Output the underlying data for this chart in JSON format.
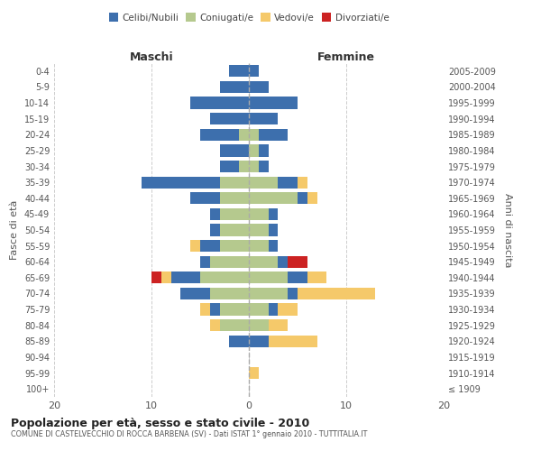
{
  "age_groups": [
    "0-4",
    "5-9",
    "10-14",
    "15-19",
    "20-24",
    "25-29",
    "30-34",
    "35-39",
    "40-44",
    "45-49",
    "50-54",
    "55-59",
    "60-64",
    "65-69",
    "70-74",
    "75-79",
    "80-84",
    "85-89",
    "90-94",
    "95-99",
    "100+"
  ],
  "birth_years": [
    "2005-2009",
    "2000-2004",
    "1995-1999",
    "1990-1994",
    "1985-1989",
    "1980-1984",
    "1975-1979",
    "1970-1974",
    "1965-1969",
    "1960-1964",
    "1955-1959",
    "1950-1954",
    "1945-1949",
    "1940-1944",
    "1935-1939",
    "1930-1934",
    "1925-1929",
    "1920-1924",
    "1915-1919",
    "1910-1914",
    "≤ 1909"
  ],
  "maschi": {
    "celibi": [
      2,
      3,
      6,
      4,
      4,
      3,
      2,
      8,
      3,
      1,
      1,
      2,
      1,
      3,
      3,
      1,
      0,
      2,
      0,
      0,
      0
    ],
    "coniugati": [
      0,
      0,
      0,
      0,
      1,
      0,
      1,
      3,
      3,
      3,
      3,
      3,
      4,
      5,
      4,
      3,
      3,
      0,
      0,
      0,
      0
    ],
    "vedovi": [
      0,
      0,
      0,
      0,
      0,
      0,
      0,
      0,
      0,
      0,
      0,
      1,
      0,
      1,
      0,
      1,
      1,
      0,
      0,
      0,
      0
    ],
    "divorziati": [
      0,
      0,
      0,
      0,
      0,
      0,
      0,
      0,
      0,
      0,
      0,
      0,
      0,
      1,
      0,
      0,
      0,
      0,
      0,
      0,
      0
    ]
  },
  "femmine": {
    "nubili": [
      1,
      2,
      5,
      3,
      3,
      1,
      1,
      2,
      1,
      1,
      1,
      1,
      1,
      2,
      1,
      1,
      0,
      2,
      0,
      0,
      0
    ],
    "coniugate": [
      0,
      0,
      0,
      0,
      1,
      1,
      1,
      3,
      5,
      2,
      2,
      2,
      3,
      4,
      4,
      2,
      2,
      0,
      0,
      0,
      0
    ],
    "vedove": [
      0,
      0,
      0,
      0,
      0,
      0,
      0,
      1,
      1,
      0,
      0,
      0,
      0,
      2,
      8,
      2,
      2,
      5,
      0,
      1,
      0
    ],
    "divorziate": [
      0,
      0,
      0,
      0,
      0,
      0,
      0,
      0,
      0,
      0,
      0,
      0,
      2,
      0,
      0,
      0,
      0,
      0,
      0,
      0,
      0
    ]
  },
  "color_celibi": "#3d6fad",
  "color_coniugati": "#b5c98e",
  "color_vedovi": "#f5c96a",
  "color_divorziati": "#cc2222",
  "title": "Popolazione per età, sesso e stato civile - 2010",
  "subtitle": "COMUNE DI CASTELVECCHIO DI ROCCA BARBENA (SV) - Dati ISTAT 1° gennaio 2010 - TUTTITALIA.IT",
  "xlabel_left": "Maschi",
  "xlabel_right": "Femmine",
  "ylabel_left": "Fasce di età",
  "ylabel_right": "Anni di nascita",
  "xlim": 20,
  "bg_color": "#ffffff",
  "grid_color": "#cccccc"
}
